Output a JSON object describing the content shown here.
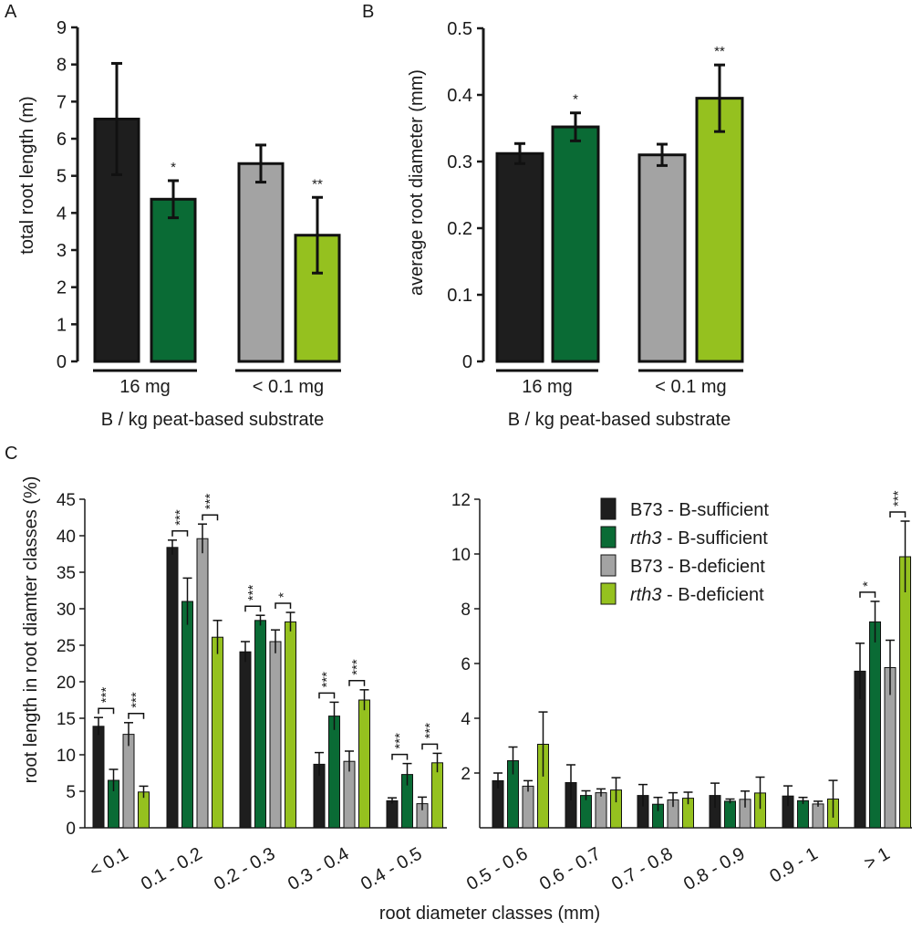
{
  "colors": {
    "b73_sufficient": "#1e1e1e",
    "rth3_sufficient": "#0a6b35",
    "b73_deficient": "#a3a3a3",
    "rth3_deficient": "#95c11f",
    "axis": "#1a1a1a"
  },
  "chart_data": [
    {
      "panel": "A",
      "type": "bar",
      "ylabel": "total root length (m)",
      "xlabel": "B / kg peat-based substrate",
      "ylim": [
        0,
        9
      ],
      "yticks": [
        "0",
        "1",
        "2",
        "3",
        "4",
        "5",
        "6",
        "7",
        "8",
        "9"
      ],
      "group_labels": [
        "16 mg",
        "< 0.1 mg"
      ],
      "bars": [
        {
          "group": 0,
          "series": 0,
          "value": 6.53,
          "err": 1.5,
          "sig": ""
        },
        {
          "group": 0,
          "series": 1,
          "value": 4.37,
          "err": 0.5,
          "sig": "*"
        },
        {
          "group": 1,
          "series": 2,
          "value": 5.33,
          "err": 0.5,
          "sig": ""
        },
        {
          "group": 1,
          "series": 3,
          "value": 3.4,
          "err": 1.02,
          "sig": "**"
        }
      ]
    },
    {
      "panel": "B",
      "type": "bar",
      "ylabel": "average root diameter (mm)",
      "xlabel": "B / kg peat-based substrate",
      "ylim": [
        0,
        0.5
      ],
      "yticks": [
        "0",
        "0.1",
        "0.2",
        "0.3",
        "0.4",
        "0.5"
      ],
      "group_labels": [
        "16 mg",
        "< 0.1 mg"
      ],
      "bars": [
        {
          "group": 0,
          "series": 0,
          "value": 0.312,
          "err": 0.015,
          "sig": ""
        },
        {
          "group": 0,
          "series": 1,
          "value": 0.352,
          "err": 0.021,
          "sig": "*"
        },
        {
          "group": 1,
          "series": 2,
          "value": 0.31,
          "err": 0.016,
          "sig": ""
        },
        {
          "group": 1,
          "series": 3,
          "value": 0.395,
          "err": 0.05,
          "sig": "**"
        }
      ]
    },
    {
      "panel": "C",
      "type": "bar",
      "ylabel": "root length in root diamter classes (%)",
      "xlabel": "root diameter classes (mm)",
      "series": [
        {
          "name": "B73",
          "suffix": " - B-sufficient"
        },
        {
          "name": "rth3",
          "suffix": " - B-sufficient"
        },
        {
          "name": "B73",
          "suffix": " - B-deficient"
        },
        {
          "name": "rth3",
          "suffix": " - B-deficient"
        }
      ],
      "left": {
        "ylim": [
          0,
          45
        ],
        "yticks": [
          "0",
          "5",
          "10",
          "15",
          "20",
          "25",
          "30",
          "35",
          "40",
          "45"
        ],
        "categories": [
          "< 0.1",
          "0.1 - 0.2",
          "0.2 - 0.3",
          "0.3 - 0.4",
          "0.4 - 0.5"
        ],
        "values": [
          [
            13.9,
            6.5,
            12.8,
            4.9
          ],
          [
            38.4,
            31.0,
            39.6,
            26.1
          ],
          [
            24.1,
            28.4,
            25.5,
            28.2
          ],
          [
            8.7,
            15.3,
            9.1,
            17.5
          ],
          [
            3.7,
            7.3,
            3.3,
            8.9
          ]
        ],
        "errors": [
          [
            1.2,
            1.5,
            1.6,
            0.8
          ],
          [
            1.0,
            3.2,
            2.0,
            2.3
          ],
          [
            1.4,
            0.7,
            1.6,
            1.3
          ],
          [
            1.6,
            1.9,
            1.4,
            1.4
          ],
          [
            0.4,
            1.5,
            0.9,
            1.3
          ]
        ],
        "sig": [
          [
            "***",
            "***"
          ],
          [
            "***",
            "***"
          ],
          [
            "***",
            "*"
          ],
          [
            "***",
            "***"
          ],
          [
            "***",
            "***"
          ]
        ]
      },
      "right": {
        "ylim": [
          0,
          12
        ],
        "yticks": [
          "2",
          "4",
          "6",
          "8",
          "10",
          "12"
        ],
        "categories": [
          "0.5 - 0.6",
          "0.6 - 0.7",
          "0.7 - 0.8",
          "0.8 - 0.9",
          "0.9 - 1",
          "> 1"
        ],
        "values": [
          [
            1.72,
            2.45,
            1.52,
            3.05
          ],
          [
            1.65,
            1.18,
            1.28,
            1.38
          ],
          [
            1.18,
            0.86,
            1.02,
            1.08
          ],
          [
            1.18,
            0.97,
            1.04,
            1.27
          ],
          [
            1.16,
            0.99,
            0.87,
            1.05
          ],
          [
            5.72,
            7.52,
            5.85,
            9.9
          ]
        ],
        "errors": [
          [
            0.28,
            0.5,
            0.2,
            1.18
          ],
          [
            0.65,
            0.17,
            0.14,
            0.45
          ],
          [
            0.4,
            0.25,
            0.26,
            0.22
          ],
          [
            0.45,
            0.08,
            0.3,
            0.58
          ],
          [
            0.37,
            0.12,
            0.1,
            0.68
          ],
          [
            1.02,
            0.75,
            1.0,
            1.3
          ]
        ],
        "sig": [
          [
            "",
            ""
          ],
          [
            "",
            ""
          ],
          [
            "",
            ""
          ],
          [
            "",
            ""
          ],
          [
            "",
            ""
          ],
          [
            "*",
            "***"
          ]
        ]
      }
    }
  ]
}
